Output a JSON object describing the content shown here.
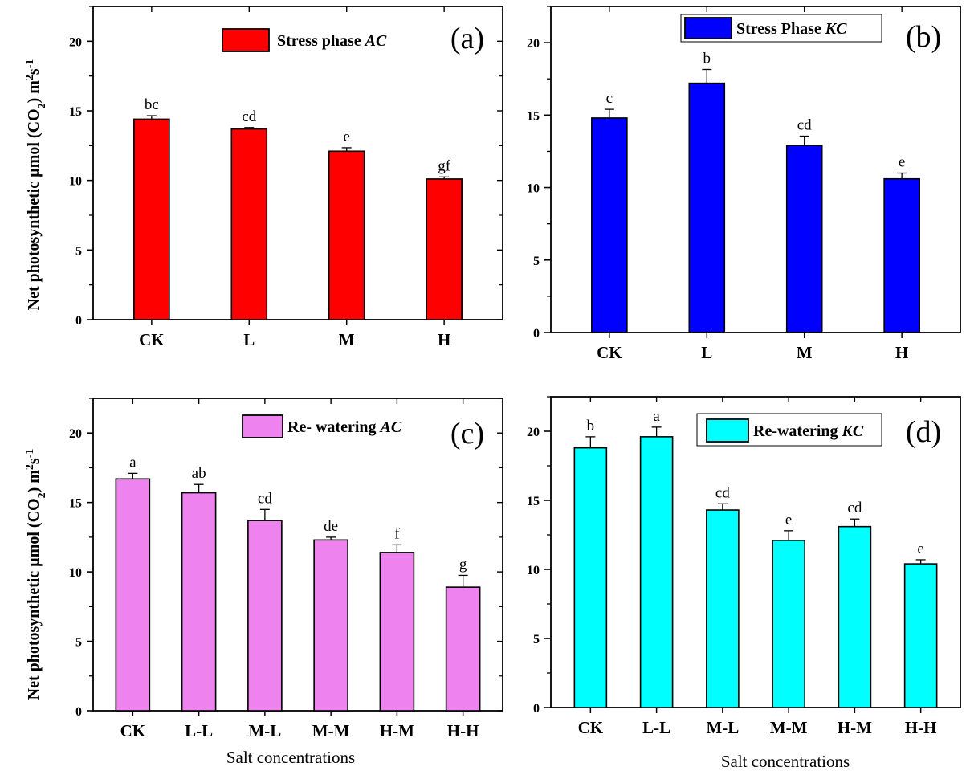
{
  "y_axis_label": {
    "main": "Net photosynthetic µmol (CO",
    "sub": "2",
    "mid": ") m",
    "sup1": "2",
    "s": "s",
    "sup2": "-1"
  },
  "x_axis_label": "Salt concentrations",
  "chart_data": [
    {
      "panel": "(a)",
      "type": "bar",
      "legend_main": "Stress phase ",
      "legend_italic": "AC",
      "color": "#ff0000",
      "categories": [
        "CK",
        "L",
        "M",
        "H"
      ],
      "values": [
        14.4,
        13.7,
        12.1,
        10.1
      ],
      "errors": [
        0.25,
        0.1,
        0.25,
        0.15
      ],
      "letters": [
        "bc",
        "cd",
        "e",
        "gf"
      ],
      "ylim": [
        0,
        22.5
      ],
      "yticks": [
        0,
        5,
        10,
        15,
        20
      ]
    },
    {
      "panel": "(b)",
      "type": "bar",
      "legend_main": "Stress Phase ",
      "legend_italic": "KC",
      "color": "#0000ff",
      "categories": [
        "CK",
        "L",
        "M",
        "H"
      ],
      "values": [
        14.8,
        17.2,
        12.9,
        10.6
      ],
      "errors": [
        0.6,
        0.95,
        0.65,
        0.4
      ],
      "letters": [
        "c",
        "b",
        "cd",
        "e"
      ],
      "ylim": [
        0,
        22.5
      ],
      "yticks": [
        0,
        5,
        10,
        15,
        20
      ]
    },
    {
      "panel": "(c)",
      "type": "bar",
      "legend_main": "Re- watering ",
      "legend_italic": "AC",
      "color": "#ee82ee",
      "categories": [
        "CK",
        "L-L",
        "M-L",
        "M-M",
        "H-M",
        "H-H"
      ],
      "values": [
        16.7,
        15.7,
        13.7,
        12.3,
        11.4,
        8.9
      ],
      "errors": [
        0.4,
        0.6,
        0.8,
        0.2,
        0.55,
        0.85
      ],
      "letters": [
        "a",
        "ab",
        "cd",
        "de",
        "f",
        "g"
      ],
      "ylim": [
        0,
        22.5
      ],
      "yticks": [
        0,
        5,
        10,
        15,
        20
      ]
    },
    {
      "panel": "(d)",
      "type": "bar",
      "legend_main": "Re-watering ",
      "legend_italic": "KC",
      "color": "#00ffff",
      "categories": [
        "CK",
        "L-L",
        "M-L",
        "M-M",
        "H-M",
        "H-H"
      ],
      "values": [
        18.8,
        19.6,
        14.3,
        12.1,
        13.1,
        10.4
      ],
      "errors": [
        0.8,
        0.7,
        0.45,
        0.7,
        0.55,
        0.3
      ],
      "letters": [
        "b",
        "a",
        "cd",
        "e",
        "cd",
        "e"
      ],
      "ylim": [
        0,
        22.5
      ],
      "yticks": [
        0,
        5,
        10,
        15,
        20
      ]
    }
  ]
}
